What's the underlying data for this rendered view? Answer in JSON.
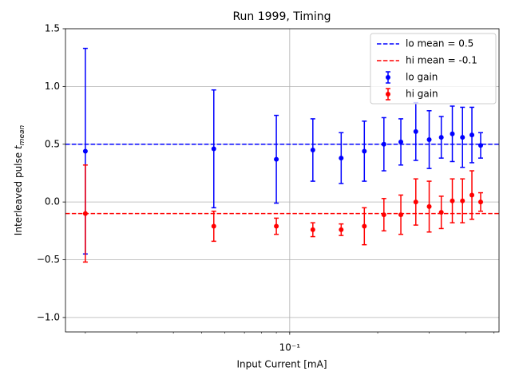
{
  "chart_data": {
    "type": "errorbar",
    "title": "Run 1999, Timing",
    "xlabel": "Input Current [mA]",
    "ylabel": {
      "text": "Interleaved pulse",
      "symbol": "t",
      "subscript": "mean"
    },
    "xscale": "log",
    "xlim": [
      0.0171,
      0.52
    ],
    "ylim": [
      -1.125,
      1.5
    ],
    "xticks": [
      {
        "value": 0.1,
        "label": "10⁻¹"
      }
    ],
    "xminorticks": [
      0.02,
      0.03,
      0.04,
      0.05,
      0.06,
      0.07,
      0.08,
      0.09,
      0.2,
      0.3,
      0.4,
      0.5
    ],
    "yticks": [
      {
        "value": 1.5,
        "label": "1.5"
      },
      {
        "value": 1.0,
        "label": "1.0"
      },
      {
        "value": 0.5,
        "label": "0.5"
      },
      {
        "value": 0.0,
        "label": "0.0"
      },
      {
        "value": -0.5,
        "label": "−0.5"
      },
      {
        "value": -1.0,
        "label": "−1.0"
      }
    ],
    "grid": true,
    "legend": "upper right",
    "x": [
      0.02,
      0.055,
      0.09,
      0.12,
      0.15,
      0.18,
      0.21,
      0.24,
      0.27,
      0.3,
      0.33,
      0.36,
      0.39,
      0.42,
      0.45
    ],
    "hlines": [
      {
        "name": "lo mean = 0.5",
        "color": "#0000ff",
        "value": 0.5
      },
      {
        "name": "hi mean = -0.1",
        "color": "#ff0000",
        "value": -0.1
      }
    ],
    "series": [
      {
        "name": "lo gain",
        "color": "#0000ff",
        "values": [
          0.44,
          0.46,
          0.37,
          0.45,
          0.38,
          0.44,
          0.5,
          0.52,
          0.61,
          0.54,
          0.56,
          0.59,
          0.56,
          0.58,
          0.49
        ],
        "errors": [
          0.89,
          0.51,
          0.38,
          0.27,
          0.22,
          0.26,
          0.23,
          0.2,
          0.25,
          0.25,
          0.18,
          0.24,
          0.26,
          0.24,
          0.11
        ]
      },
      {
        "name": "hi gain",
        "color": "#ff0000",
        "values": [
          -0.1,
          -0.21,
          -0.21,
          -0.24,
          -0.24,
          -0.21,
          -0.11,
          -0.11,
          0.0,
          -0.04,
          -0.09,
          0.01,
          0.01,
          0.06,
          0.0
        ],
        "errors": [
          0.42,
          0.13,
          0.07,
          0.06,
          0.05,
          0.16,
          0.14,
          0.17,
          0.2,
          0.22,
          0.14,
          0.19,
          0.19,
          0.21,
          0.08
        ]
      }
    ]
  }
}
